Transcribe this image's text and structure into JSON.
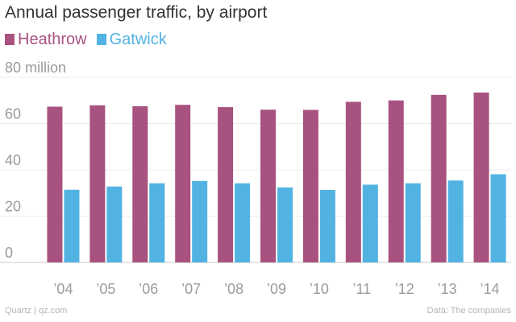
{
  "chart_data": {
    "type": "bar",
    "title": "Annual passenger traffic, by airport",
    "categories": [
      "’04",
      "’05",
      "’06",
      "’07",
      "’08",
      "’09",
      "’10",
      "’11",
      "’12",
      "’13",
      "’14"
    ],
    "series": [
      {
        "name": "Heathrow",
        "color": "#a8527f",
        "values": [
          67.3,
          67.9,
          67.5,
          68.1,
          67.1,
          66.0,
          65.9,
          69.4,
          70.0,
          72.4,
          73.4
        ]
      },
      {
        "name": "Gatwick",
        "color": "#52b3e2",
        "values": [
          31.4,
          32.8,
          34.2,
          35.2,
          34.2,
          32.4,
          31.3,
          33.6,
          34.2,
          35.4,
          38.1
        ]
      }
    ],
    "yticks": [
      "0",
      "20",
      "40",
      "60",
      "80 million"
    ],
    "ytick_values": [
      0,
      20,
      40,
      60,
      80
    ],
    "ylim": [
      0,
      80
    ],
    "grid": true,
    "legend_position": "top-left"
  },
  "footer": {
    "source_left": "Quartz | qz.com",
    "source_right": "Data: The companies"
  }
}
